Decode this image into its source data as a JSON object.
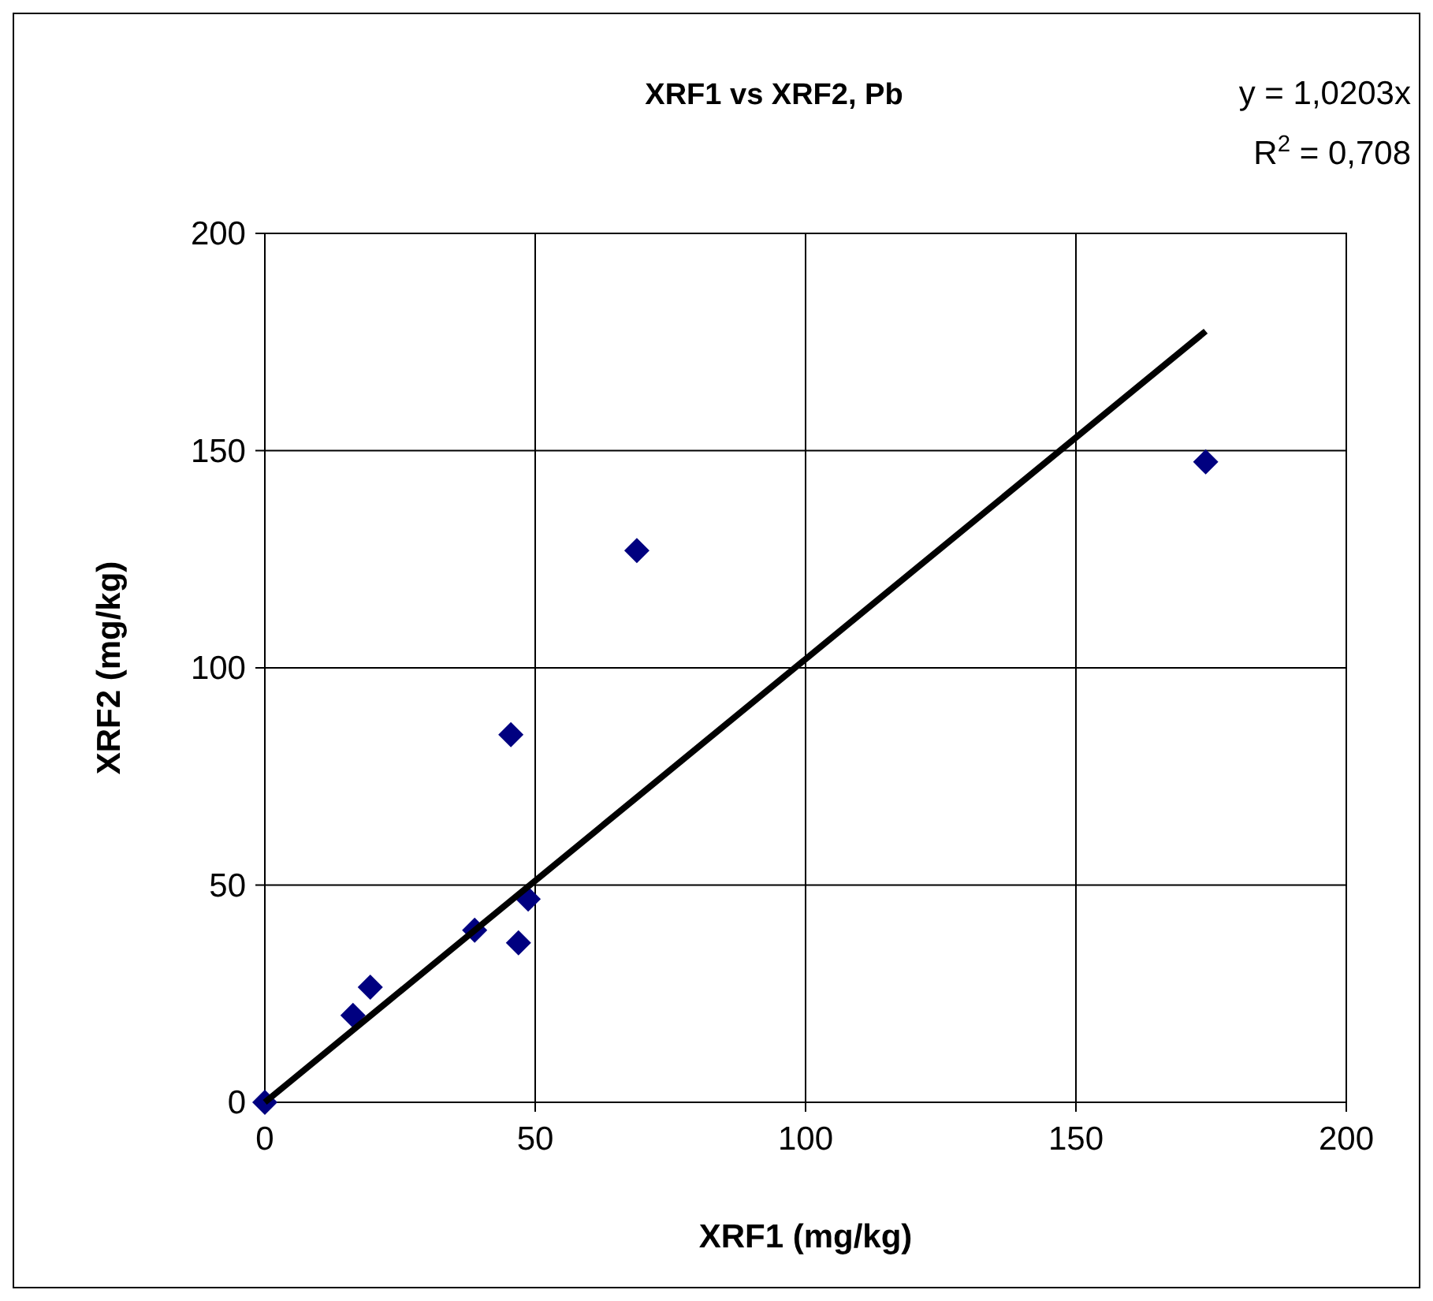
{
  "chart_data": {
    "type": "scatter",
    "title": "XRF1 vs XRF2, Pb",
    "xlabel": "XRF1 (mg/kg)",
    "ylabel": "XRF2 (mg/kg)",
    "annotations": [
      "y = 1,0203x",
      "R$^{2}$ = 0,708"
    ],
    "xlim": [
      0,
      200
    ],
    "ylim": [
      0,
      200
    ],
    "xticks": [
      0,
      50,
      100,
      150,
      200
    ],
    "yticks": [
      0,
      50,
      100,
      150,
      200
    ],
    "grid": true,
    "marker": "diamond",
    "series": [
      {
        "color": "#000080",
        "x": [
          0,
          16.3,
          19.5,
          38.8,
          45.5,
          46.9,
          48.7,
          68.8,
          174
        ],
        "values": [
          0,
          20,
          26.5,
          39.6,
          84.6,
          36.7,
          46.8,
          127,
          147.4
        ]
      },
      {
        "type": "line",
        "color": "#000000",
        "marker": "none",
        "line_style": "solid",
        "x": [
          0,
          174
        ],
        "values": [
          0,
          177.5
        ]
      }
    ]
  }
}
